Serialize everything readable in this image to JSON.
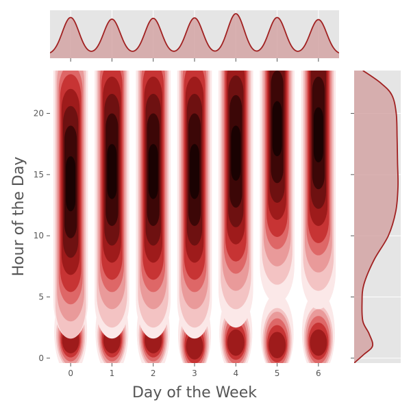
{
  "chart_data": {
    "type": "heatmap",
    "subtype": "joint-kde",
    "xlabel": "Day of the Week",
    "ylabel": "Hour of the Day",
    "x_ticks": [
      "0",
      "1",
      "2",
      "3",
      "4",
      "5",
      "6"
    ],
    "y_ticks": [
      "0",
      "5",
      "10",
      "15",
      "20"
    ],
    "xlim": [
      -0.5,
      6.5
    ],
    "ylim": [
      -0.4,
      23.5
    ],
    "grid": true,
    "colors": {
      "background": "#e5e5e5",
      "grid": "#ffffff",
      "line": "#a02020",
      "fill": "#d4a5a5",
      "contour_levels": [
        "#fbe8e8",
        "#f3c3c3",
        "#e99a9a",
        "#de6767",
        "#c73434",
        "#9e1b1b",
        "#6e1111",
        "#3c0707",
        "#1a0202"
      ]
    },
    "days": [
      {
        "day": 0,
        "peak_hour": 14,
        "night_peak": 1.2
      },
      {
        "day": 1,
        "peak_hour": 15,
        "night_peak": 1.2
      },
      {
        "day": 2,
        "peak_hour": 15,
        "night_peak": 1.2
      },
      {
        "day": 3,
        "peak_hour": 15,
        "night_peak": 0.7
      },
      {
        "day": 4,
        "peak_hour": 16.5,
        "night_peak": 1.0
      },
      {
        "day": 5,
        "peak_hour": 18.5,
        "night_peak": 0.8
      },
      {
        "day": 6,
        "peak_hour": 18,
        "night_peak": 1.0
      }
    ],
    "x_marginal": {
      "peaks": [
        0,
        1,
        2,
        3,
        4,
        5,
        6
      ],
      "relative_heights": [
        0.88,
        0.84,
        0.86,
        0.87,
        0.97,
        0.88,
        0.83
      ]
    },
    "y_marginal": {
      "profile": [
        {
          "hour": -0.4,
          "density": 0.0
        },
        {
          "hour": 0.3,
          "density": 0.22
        },
        {
          "hour": 1.0,
          "density": 0.42
        },
        {
          "hour": 2.0,
          "density": 0.34
        },
        {
          "hour": 3.0,
          "density": 0.2
        },
        {
          "hour": 4.5,
          "density": 0.18
        },
        {
          "hour": 6.0,
          "density": 0.22
        },
        {
          "hour": 8.0,
          "density": 0.45
        },
        {
          "hour": 10.0,
          "density": 0.78
        },
        {
          "hour": 12.0,
          "density": 0.95
        },
        {
          "hour": 14.0,
          "density": 1.0
        },
        {
          "hour": 16.0,
          "density": 0.99
        },
        {
          "hour": 18.0,
          "density": 0.98
        },
        {
          "hour": 20.0,
          "density": 0.96
        },
        {
          "hour": 21.5,
          "density": 0.86
        },
        {
          "hour": 22.5,
          "density": 0.6
        },
        {
          "hour": 23.5,
          "density": 0.2
        }
      ]
    }
  }
}
